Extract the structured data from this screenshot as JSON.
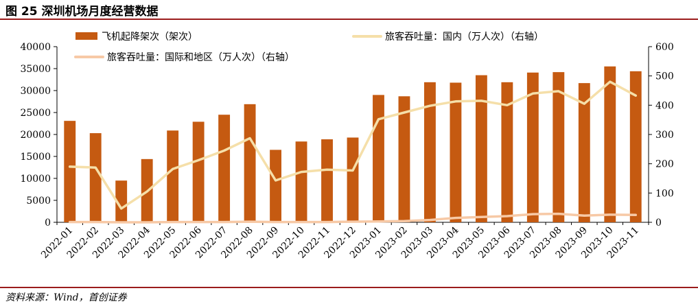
{
  "figure": {
    "title": "图 25 深圳机场月度经营数据",
    "source": "资料来源：Wind，首创证券"
  },
  "chart_data": {
    "type": "bar+line",
    "categories": [
      "2022-01",
      "2022-02",
      "2022-03",
      "2022-04",
      "2022-05",
      "2022-06",
      "2022-07",
      "2022-08",
      "2022-09",
      "2022-10",
      "2022-11",
      "2022-12",
      "2023-01",
      "2023-02",
      "2023-03",
      "2023-04",
      "2023-05",
      "2023-06",
      "2023-07",
      "2023-08",
      "2023-09",
      "2023-10",
      "2023-11"
    ],
    "y_left": {
      "ylim": [
        0,
        40000
      ],
      "ticks": [
        0,
        5000,
        10000,
        15000,
        20000,
        25000,
        30000,
        35000,
        40000
      ]
    },
    "y_right": {
      "ylim": [
        0,
        600
      ],
      "ticks": [
        0,
        100,
        200,
        300,
        400,
        500,
        600
      ]
    },
    "legend_placement": "top",
    "series": [
      {
        "name": "飞机起降架次（架次）",
        "type": "bar",
        "axis": "left",
        "color": "#c55a11",
        "values": [
          23100,
          20300,
          9500,
          14400,
          20900,
          22900,
          24500,
          26900,
          16500,
          18400,
          18900,
          19300,
          29000,
          28700,
          31900,
          31800,
          33500,
          31900,
          34100,
          34200,
          31700,
          35500,
          34400
        ]
      },
      {
        "name": "旅客吞吐量：国内（万人次）（右轴）",
        "type": "line",
        "axis": "right",
        "color": "#f5dfa9",
        "values": [
          190,
          187,
          47,
          105,
          182,
          212,
          245,
          287,
          143,
          172,
          180,
          177,
          352,
          375,
          398,
          413,
          415,
          400,
          440,
          448,
          405,
          480,
          433
        ]
      },
      {
        "name": "旅客吞吐量：国际和地区（万人次）（右轴）",
        "type": "line",
        "axis": "right",
        "color": "#f7c9a6",
        "values": [
          1,
          1,
          0,
          0,
          1,
          1,
          1,
          2,
          1,
          1,
          1,
          2,
          3,
          4,
          8,
          15,
          18,
          21,
          28,
          29,
          23,
          26,
          25
        ]
      }
    ]
  }
}
